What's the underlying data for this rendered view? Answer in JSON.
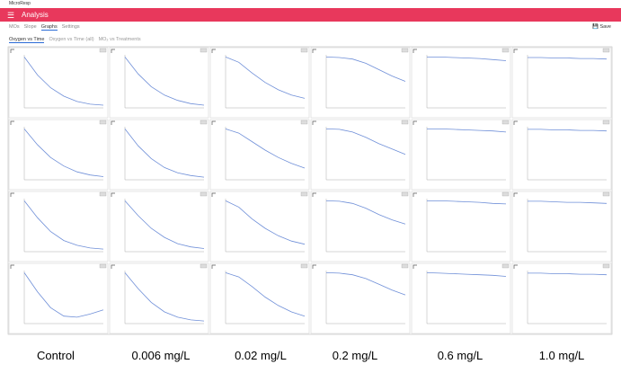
{
  "window_title": "MicroResp",
  "header": {
    "title": "Analysis"
  },
  "tabs": [
    "MOs",
    "Slope",
    "Graphs",
    "Settings"
  ],
  "subtabs": [
    "Oxygen vs Time",
    "Oxygen vs Time (all)",
    "MO₂ vs Treatments"
  ],
  "save": "Save",
  "grid": {
    "rows": [
      [
        [
          96,
          62,
          38,
          22,
          12,
          7,
          5
        ],
        [
          96,
          64,
          40,
          24,
          14,
          8,
          5
        ],
        [
          96,
          86,
          66,
          48,
          34,
          24,
          18
        ],
        [
          96,
          95,
          92,
          84,
          72,
          60,
          50
        ],
        [
          96,
          96,
          95,
          94,
          93,
          91,
          89
        ],
        [
          95,
          95,
          94,
          94,
          93,
          93,
          92
        ]
      ],
      [
        [
          96,
          66,
          42,
          26,
          15,
          9,
          6
        ],
        [
          96,
          64,
          40,
          23,
          13,
          8,
          5
        ],
        [
          96,
          88,
          72,
          56,
          42,
          31,
          22
        ],
        [
          96,
          95,
          90,
          80,
          68,
          58,
          48
        ],
        [
          96,
          96,
          95,
          94,
          93,
          92,
          90
        ],
        [
          95,
          95,
          94,
          94,
          93,
          93,
          92
        ]
      ],
      [
        [
          96,
          64,
          38,
          21,
          12,
          7,
          5
        ],
        [
          96,
          68,
          44,
          27,
          15,
          9,
          6
        ],
        [
          96,
          84,
          62,
          44,
          30,
          20,
          14
        ],
        [
          96,
          95,
          91,
          82,
          70,
          60,
          52
        ],
        [
          96,
          96,
          95,
          94,
          93,
          91,
          90
        ],
        [
          95,
          95,
          94,
          93,
          93,
          92,
          91
        ]
      ],
      [
        [
          96,
          60,
          30,
          14,
          12,
          18,
          26
        ],
        [
          96,
          66,
          40,
          22,
          12,
          7,
          5
        ],
        [
          96,
          88,
          70,
          50,
          34,
          22,
          14
        ],
        [
          96,
          95,
          92,
          85,
          74,
          63,
          54
        ],
        [
          96,
          95,
          94,
          93,
          92,
          91,
          89
        ],
        [
          95,
          95,
          94,
          94,
          93,
          93,
          92
        ]
      ]
    ]
  },
  "captions": [
    "Control",
    "0.006 mg/L",
    "0.02 mg/L",
    "0.2 mg/L",
    "0.6 mg/L",
    "1.0 mg/L"
  ]
}
